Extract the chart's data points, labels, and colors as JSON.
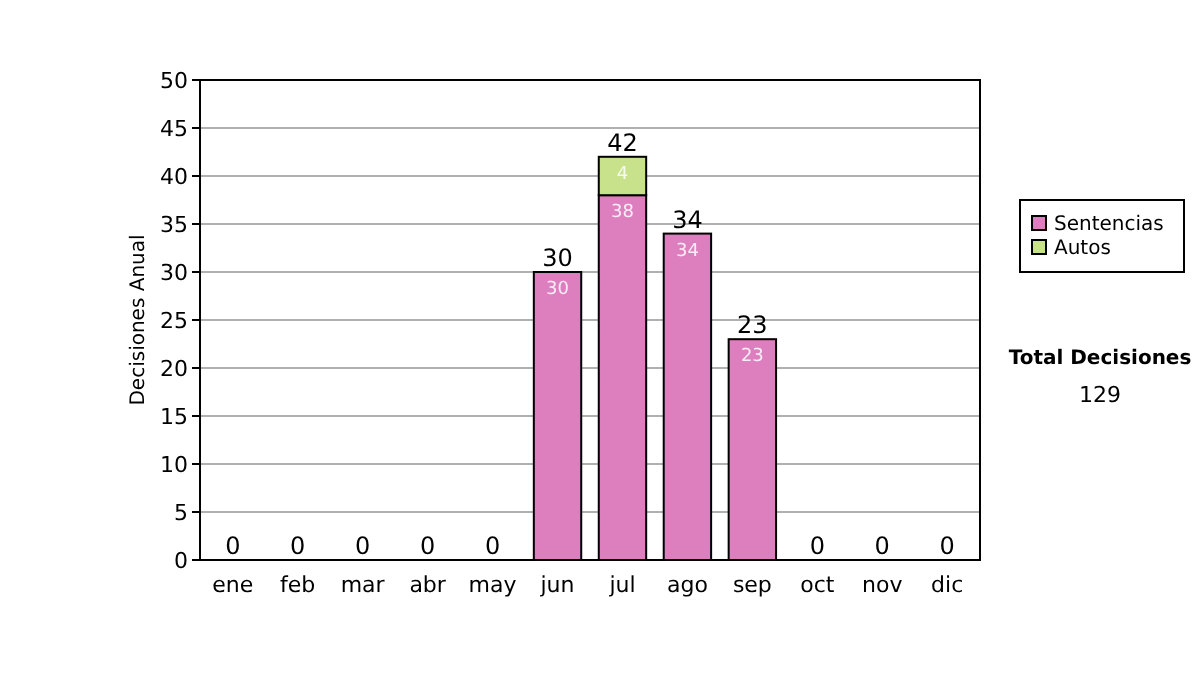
{
  "chart_data": {
    "type": "bar",
    "stacked": true,
    "ylabel": "Decisiones Anual",
    "categories": [
      "ene",
      "feb",
      "mar",
      "abr",
      "may",
      "jun",
      "jul",
      "ago",
      "sep",
      "oct",
      "nov",
      "dic"
    ],
    "series": [
      {
        "name": "Sentencias",
        "color": "#dd7fbf",
        "values": [
          0,
          0,
          0,
          0,
          0,
          30,
          38,
          34,
          23,
          0,
          0,
          0
        ],
        "value_labels": [
          null,
          null,
          null,
          null,
          null,
          "30",
          "38",
          "34",
          "23",
          null,
          null,
          null
        ]
      },
      {
        "name": "Autos",
        "color": "#c8e28c",
        "values": [
          0,
          0,
          0,
          0,
          0,
          0,
          4,
          0,
          0,
          0,
          0,
          0
        ],
        "value_labels": [
          null,
          null,
          null,
          null,
          null,
          null,
          "4",
          null,
          null,
          null,
          null,
          null
        ]
      }
    ],
    "totals": [
      "0",
      "0",
      "0",
      "0",
      "0",
      "30",
      "42",
      "34",
      "23",
      "0",
      "0",
      "0"
    ],
    "ylim": [
      0,
      50
    ],
    "yticks": [
      0,
      5,
      10,
      15,
      20,
      25,
      30,
      35,
      40,
      45,
      50
    ],
    "grid": "y",
    "legend": "right",
    "annotations": [
      "Total Decisiones",
      "129"
    ]
  }
}
